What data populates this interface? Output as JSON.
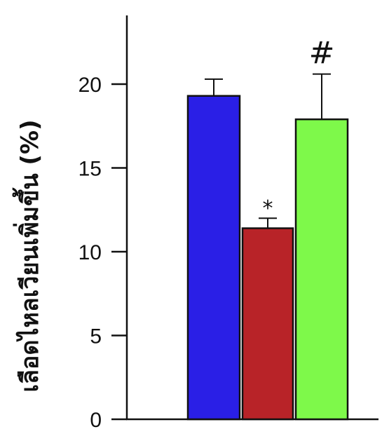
{
  "chart_data": {
    "type": "bar",
    "title": "",
    "xlabel": "",
    "ylabel": "เลือดไหลเวียนเพิ่มขึ้น (%)",
    "ylim": [
      0,
      24
    ],
    "yticks": [
      0,
      5,
      10,
      15,
      20
    ],
    "ytick_labels": [
      "0",
      "5",
      "10",
      "15",
      "20"
    ],
    "grid": false,
    "legend": "none",
    "series": [
      {
        "values": [
          19.3,
          11.4,
          17.9
        ],
        "errors": [
          1.0,
          0.6,
          2.7
        ],
        "colors": [
          "#2a1fe6",
          "#b82328",
          "#7ef94a"
        ],
        "annotations": [
          "",
          "*",
          "#"
        ]
      }
    ]
  }
}
